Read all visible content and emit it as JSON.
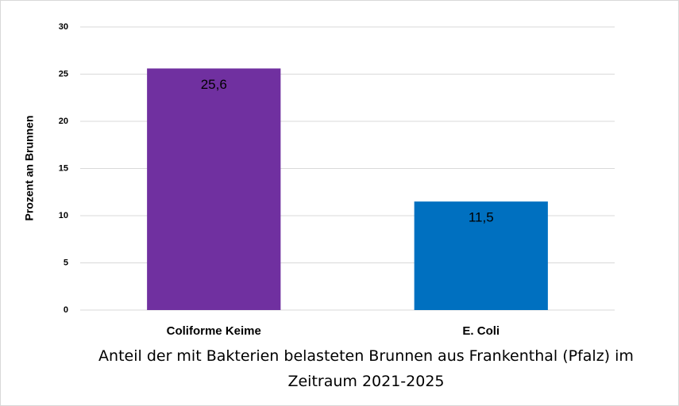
{
  "chart_data": {
    "type": "bar",
    "x_label": "Anteil der mit Bakterien belasteten Brunnen aus Frankenthal (Pfalz) im Zeitraum 2021-2025",
    "y_label": "Prozent an Brunnen",
    "categories": [
      "Coliforme Keime",
      "E. Coli"
    ],
    "values": [
      25.6,
      11.5
    ],
    "value_labels": [
      "25,6",
      "11,5"
    ],
    "colors": [
      "#7030a0",
      "#0070c0"
    ],
    "ylim": [
      0,
      30
    ],
    "yticks": [
      0,
      5,
      10,
      15,
      20,
      25,
      30
    ],
    "grid": true
  }
}
